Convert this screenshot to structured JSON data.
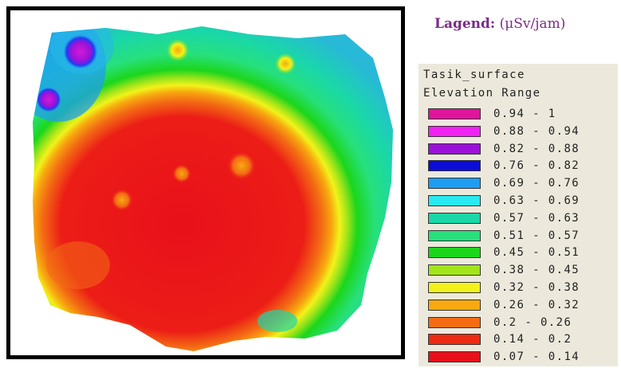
{
  "legend_title": {
    "bold_label": "Lagend:",
    "unit": "(μSv/jam)"
  },
  "legend": {
    "layer_name": "Tasik_surface",
    "field_name": "Elevation Range",
    "classes": [
      {
        "label": "0.94 - 1",
        "color": "#e0159b"
      },
      {
        "label": "0.88 - 0.94",
        "color": "#f222f4"
      },
      {
        "label": "0.82 - 0.88",
        "color": "#9b12d8"
      },
      {
        "label": "0.76 - 0.82",
        "color": "#0c0cd8"
      },
      {
        "label": "0.69 - 0.76",
        "color": "#1f9df2"
      },
      {
        "label": "0.63 - 0.69",
        "color": "#28eaf0"
      },
      {
        "label": "0.57 - 0.63",
        "color": "#1ad7a8"
      },
      {
        "label": "0.51 - 0.57",
        "color": "#27e07c"
      },
      {
        "label": "0.45 - 0.51",
        "color": "#1cd61c"
      },
      {
        "label": "0.38 - 0.45",
        "color": "#a2e51a"
      },
      {
        "label": "0.32 - 0.38",
        "color": "#f2f21a"
      },
      {
        "label": "0.26 - 0.32",
        "color": "#f7a90f"
      },
      {
        "label": "0.2 - 0.26",
        "color": "#f36c14"
      },
      {
        "label": "0.14 - 0.2",
        "color": "#ee2a12"
      },
      {
        "label": "0.07 - 0.14",
        "color": "#e8101a"
      }
    ]
  }
}
